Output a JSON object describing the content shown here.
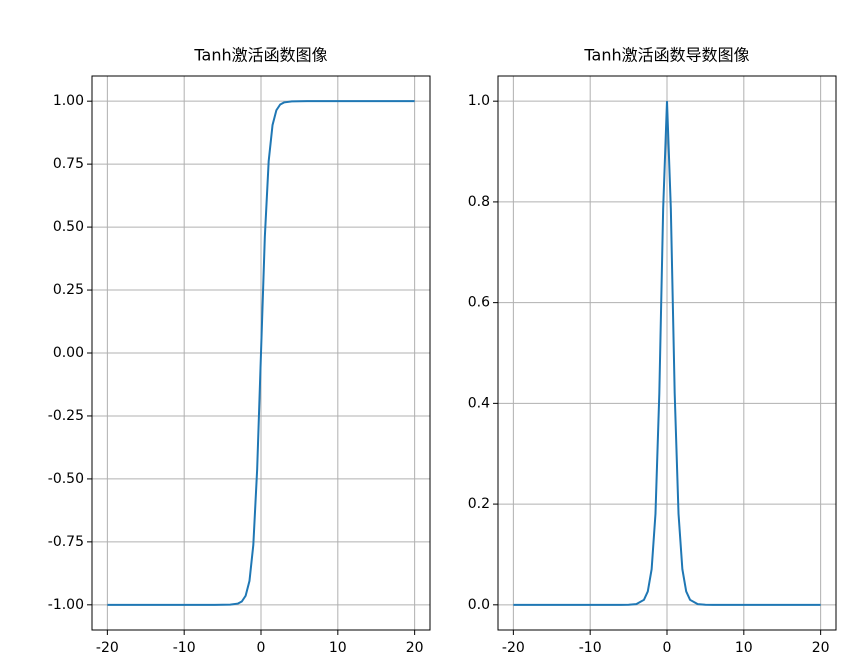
{
  "chart_data": [
    {
      "type": "line",
      "title": "Tanh激活函数图像",
      "x": [
        -20,
        -15,
        -10,
        -6,
        -5,
        -4,
        -3,
        -2.5,
        -2,
        -1.5,
        -1,
        -0.5,
        0,
        0.5,
        1,
        1.5,
        2,
        2.5,
        3,
        4,
        5,
        6,
        10,
        15,
        20
      ],
      "values": [
        -1,
        -1,
        -1,
        -1,
        -0.9999,
        -0.9993,
        -0.995,
        -0.987,
        -0.964,
        -0.905,
        -0.762,
        -0.462,
        0,
        0.462,
        0.762,
        0.905,
        0.964,
        0.987,
        0.995,
        0.9993,
        0.9999,
        1,
        1,
        1,
        1
      ],
      "color": "#1f77b4",
      "xlim": [
        -22,
        22
      ],
      "xticks": [
        -20,
        -10,
        0,
        10,
        20
      ],
      "ylim": [
        -1.1,
        1.1
      ],
      "yticks": [
        {
          "value": -1,
          "label": "-1.00"
        },
        {
          "value": -0.75,
          "label": "-0.75"
        },
        {
          "value": -0.5,
          "label": "-0.50"
        },
        {
          "value": -0.25,
          "label": "-0.25"
        },
        {
          "value": 0,
          "label": "0.00"
        },
        {
          "value": 0.25,
          "label": "0.25"
        },
        {
          "value": 0.5,
          "label": "0.50"
        },
        {
          "value": 0.75,
          "label": "0.75"
        },
        {
          "value": 1,
          "label": "1.00"
        }
      ],
      "grid": true
    },
    {
      "type": "line",
      "title": "Tanh激活函数导数图像",
      "x": [
        -20,
        -15,
        -10,
        -6,
        -5,
        -4,
        -3,
        -2.5,
        -2,
        -1.5,
        -1,
        -0.5,
        0,
        0.5,
        1,
        1.5,
        2,
        2.5,
        3,
        4,
        5,
        6,
        10,
        15,
        20
      ],
      "values": [
        0,
        0,
        0,
        0,
        0.0002,
        0.0013,
        0.0099,
        0.0266,
        0.0707,
        0.1807,
        0.42,
        0.7864,
        1,
        0.7864,
        0.42,
        0.1807,
        0.0707,
        0.0266,
        0.0099,
        0.0013,
        0.0002,
        0,
        0,
        0,
        0
      ],
      "color": "#1f77b4",
      "xlim": [
        -22,
        22
      ],
      "xticks": [
        -20,
        -10,
        0,
        10,
        20
      ],
      "ylim": [
        -0.05,
        1.05
      ],
      "yticks": [
        {
          "value": 0,
          "label": "0.0"
        },
        0.2,
        0.4,
        0.6,
        0.8,
        {
          "value": 1,
          "label": "1.0"
        }
      ],
      "grid": true
    }
  ]
}
